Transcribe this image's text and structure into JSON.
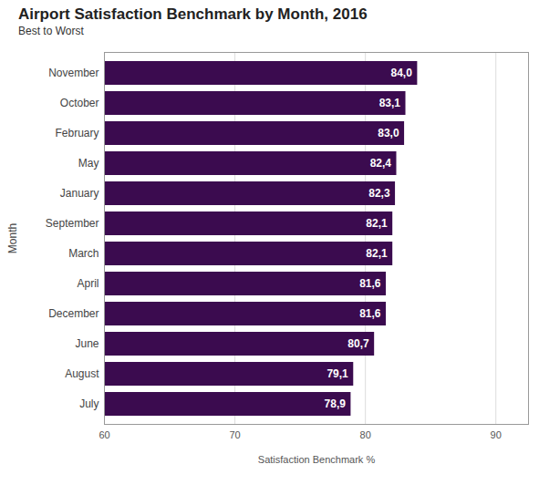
{
  "chart_data": {
    "type": "bar",
    "title": "Airport Satisfaction Benchmark by Month, 2016",
    "subtitle": "Best to Worst",
    "x_label": "Satisfaction Benchmark %",
    "y_label": "Month",
    "orientation": "horizontal",
    "categories": [
      "November",
      "October",
      "February",
      "May",
      "January",
      "September",
      "March",
      "April",
      "December",
      "June",
      "August",
      "July"
    ],
    "values": [
      84.0,
      83.1,
      83.0,
      82.4,
      82.3,
      82.1,
      82.1,
      81.6,
      81.6,
      80.7,
      79.1,
      78.9
    ],
    "value_labels": [
      "84,0",
      "83,1",
      "83,0",
      "82,4",
      "82,3",
      "82,1",
      "82,1",
      "81,6",
      "81,6",
      "80,7",
      "79,1",
      "78,9"
    ],
    "data_labels": true,
    "color": "#3b0b4f",
    "xlim": [
      60,
      92.5
    ],
    "xticks": [
      60,
      70,
      80,
      90
    ],
    "grid": true
  }
}
